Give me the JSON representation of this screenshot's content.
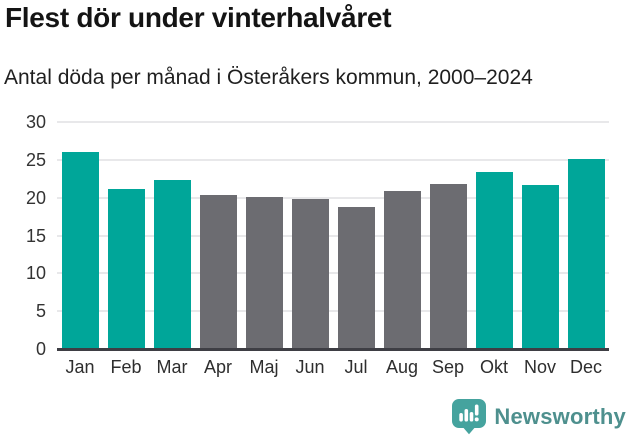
{
  "header": {
    "title": "Flest dör under vinterhalvåret",
    "subtitle": "Antal döda per månad i Österåkers kommun, 2000–2024"
  },
  "chart_data": {
    "type": "bar",
    "title": "Flest dör under vinterhalvåret",
    "subtitle": "Antal döda per månad i Österåkers kommun, 2000–2024",
    "categories": [
      "Jan",
      "Feb",
      "Mar",
      "Apr",
      "Maj",
      "Jun",
      "Jul",
      "Aug",
      "Sep",
      "Okt",
      "Nov",
      "Dec"
    ],
    "values": [
      26,
      21.2,
      22.4,
      20.3,
      20.1,
      19.8,
      18.8,
      20.9,
      21.8,
      23.4,
      21.7,
      25.1
    ],
    "bar_colors": [
      "#00a699",
      "#00a699",
      "#00a699",
      "#6c6c71",
      "#6c6c71",
      "#6c6c71",
      "#6c6c71",
      "#6c6c71",
      "#6c6c71",
      "#00a699",
      "#00a699",
      "#00a699"
    ],
    "highlight_color": "#00a699",
    "muted_color": "#6c6c71",
    "yticks": [
      0,
      5,
      10,
      15,
      20,
      25,
      30
    ],
    "ylim": [
      0,
      30
    ],
    "xlabel": "",
    "ylabel": "",
    "grid": true,
    "legend": "none",
    "gridline_color": "#e8e8ea",
    "axis_color": "#3e3e44"
  },
  "footer": {
    "brand": "Newsworthy",
    "brand_text_color": "#4e908e",
    "logo_color": "#45a39e"
  }
}
